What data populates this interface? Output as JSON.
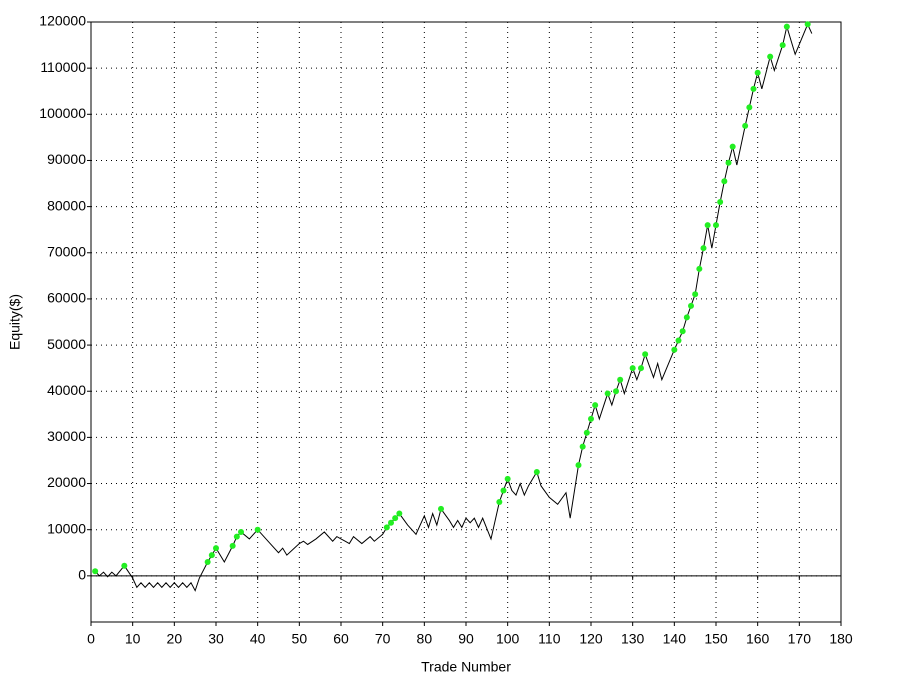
{
  "chart_data": {
    "type": "line",
    "xlabel": "Trade Number",
    "ylabel": "Equity($)",
    "xlim": [
      0,
      180
    ],
    "xticks": [
      0,
      10,
      20,
      30,
      40,
      50,
      60,
      70,
      80,
      90,
      100,
      110,
      120,
      130,
      140,
      150,
      160,
      170,
      180
    ],
    "ylim": [
      -10000,
      120000
    ],
    "yticks": [
      0,
      10000,
      20000,
      30000,
      40000,
      50000,
      60000,
      70000,
      80000,
      90000,
      100000,
      110000,
      120000
    ],
    "grid": true,
    "series": [
      {
        "kind": "line",
        "color": "#000000",
        "x": [
          1,
          2,
          3,
          4,
          5,
          6,
          8,
          10,
          11,
          12,
          13,
          14,
          15,
          16,
          17,
          18,
          19,
          20,
          21,
          22,
          23,
          24,
          25,
          26,
          28,
          29,
          30,
          32,
          34,
          35,
          36,
          38,
          40,
          43,
          45,
          46,
          47,
          50,
          51,
          52,
          54,
          56,
          58,
          59,
          60,
          61,
          62,
          63,
          65,
          67,
          68,
          70,
          71,
          72,
          73,
          74,
          76,
          78,
          80,
          81,
          82,
          83,
          84,
          86,
          87,
          88,
          89,
          90,
          91,
          92,
          93,
          94,
          96,
          98,
          99,
          100,
          101,
          102,
          103,
          104,
          105,
          106,
          107,
          108,
          110,
          112,
          114,
          115,
          117,
          118,
          119,
          120,
          121,
          122,
          124,
          125,
          126,
          127,
          128,
          130,
          131,
          132,
          133,
          135,
          136,
          137,
          140,
          141,
          142,
          143,
          144,
          145,
          146,
          147,
          148,
          149,
          150,
          151,
          152,
          153,
          154,
          155,
          157,
          158,
          159,
          160,
          161,
          163,
          164,
          166,
          167,
          169,
          172,
          173
        ],
        "values": [
          1000,
          0,
          800,
          -200,
          800,
          0,
          2200,
          -500,
          -2500,
          -1500,
          -2500,
          -1500,
          -2500,
          -1500,
          -2500,
          -1500,
          -2500,
          -1500,
          -2500,
          -1500,
          -2500,
          -1500,
          -3200,
          -500,
          3000,
          4500,
          6000,
          3000,
          6500,
          8500,
          9500,
          8000,
          10000,
          7000,
          5000,
          6000,
          4500,
          7000,
          7500,
          6800,
          8000,
          9500,
          7500,
          8500,
          8000,
          7500,
          7000,
          8500,
          7000,
          8500,
          7500,
          9000,
          10500,
          11500,
          12500,
          13500,
          11000,
          9000,
          13000,
          10500,
          13500,
          11000,
          14500,
          12000,
          10500,
          12000,
          10500,
          12500,
          11500,
          12500,
          10500,
          12500,
          8000,
          16000,
          18500,
          21000,
          18500,
          17500,
          20000,
          17500,
          19500,
          21000,
          22500,
          19500,
          17000,
          15500,
          18000,
          12500,
          24000,
          28000,
          31000,
          34000,
          37000,
          34000,
          39500,
          37000,
          40000,
          42500,
          39500,
          45000,
          42500,
          45000,
          48000,
          43000,
          46000,
          42500,
          49000,
          51000,
          53000,
          56000,
          58500,
          61000,
          66500,
          71000,
          76000,
          71000,
          76000,
          81000,
          85500,
          89500,
          93000,
          89000,
          97500,
          101500,
          105500,
          109000,
          105500,
          112500,
          109500,
          115000,
          119000,
          113000,
          119500,
          117500
        ]
      },
      {
        "kind": "points",
        "color": "#22ee22",
        "x": [
          1,
          8,
          28,
          29,
          30,
          34,
          35,
          36,
          40,
          71,
          72,
          73,
          74,
          84,
          98,
          99,
          100,
          107,
          117,
          118,
          119,
          120,
          121,
          124,
          126,
          127,
          130,
          132,
          133,
          140,
          141,
          142,
          143,
          144,
          145,
          146,
          147,
          148,
          150,
          151,
          152,
          153,
          154,
          157,
          158,
          159,
          160,
          163,
          166,
          167,
          172
        ],
        "values": [
          1000,
          2200,
          3000,
          4500,
          6000,
          6500,
          8500,
          9500,
          10000,
          10500,
          11500,
          12500,
          13500,
          14500,
          16000,
          18500,
          21000,
          22500,
          24000,
          28000,
          31000,
          34000,
          37000,
          39500,
          40000,
          42500,
          45000,
          45000,
          48000,
          49000,
          51000,
          53000,
          56000,
          58500,
          61000,
          66500,
          71000,
          76000,
          76000,
          81000,
          85500,
          89500,
          93000,
          97500,
          101500,
          105500,
          109000,
          112500,
          115000,
          119000,
          119500
        ]
      }
    ]
  }
}
